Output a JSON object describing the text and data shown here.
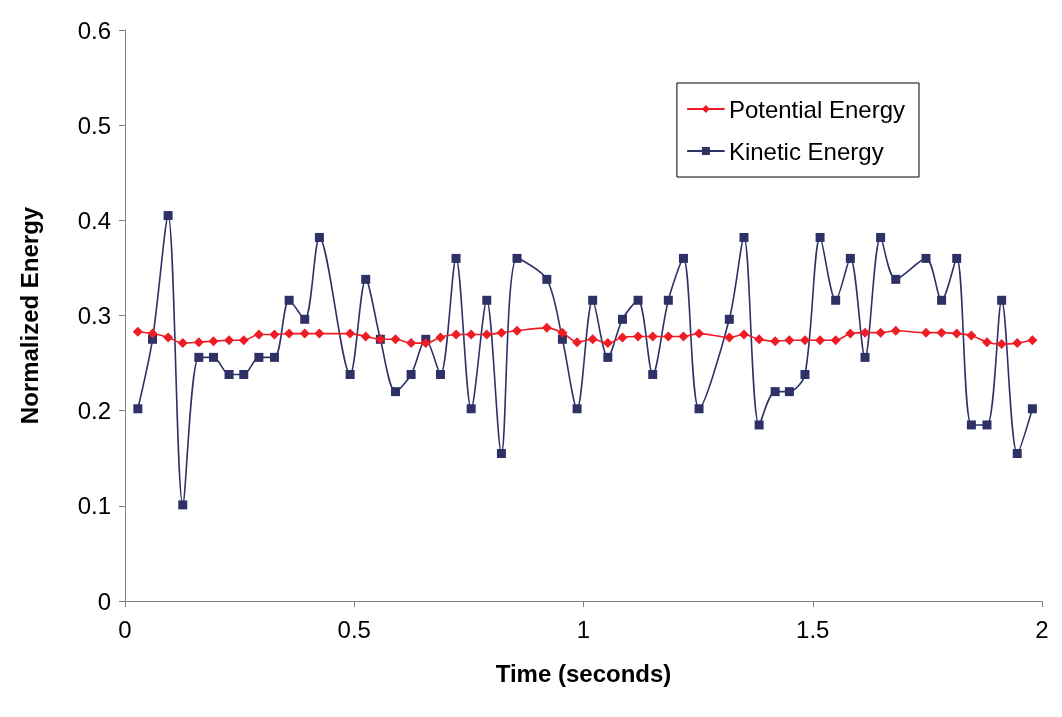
{
  "chart_data": {
    "type": "line",
    "xlabel": "Time (seconds)",
    "ylabel": "Normalized Energy",
    "x": [
      0.028,
      0.06,
      0.094,
      0.126,
      0.161,
      0.193,
      0.227,
      0.259,
      0.292,
      0.326,
      0.358,
      0.392,
      0.424,
      0.491,
      0.525,
      0.557,
      0.59,
      0.624,
      0.656,
      0.688,
      0.722,
      0.755,
      0.789,
      0.821,
      0.855,
      0.92,
      0.954,
      0.986,
      1.02,
      1.053,
      1.085,
      1.119,
      1.151,
      1.185,
      1.218,
      1.252,
      1.318,
      1.35,
      1.383,
      1.418,
      1.449,
      1.483,
      1.516,
      1.55,
      1.582,
      1.614,
      1.648,
      1.681,
      1.747,
      1.781,
      1.814,
      1.846,
      1.88,
      1.912,
      1.946,
      1.979
    ],
    "series": [
      {
        "name": "Potential Energy",
        "color": "#ee1c25",
        "marker": "diamond",
        "values": [
          0.283,
          0.281,
          0.277,
          0.271,
          0.272,
          0.273,
          0.274,
          0.274,
          0.28,
          0.28,
          0.281,
          0.281,
          0.281,
          0.281,
          0.278,
          0.275,
          0.275,
          0.271,
          0.271,
          0.277,
          0.28,
          0.28,
          0.28,
          0.282,
          0.284,
          0.287,
          0.282,
          0.272,
          0.275,
          0.271,
          0.277,
          0.278,
          0.278,
          0.278,
          0.278,
          0.281,
          0.277,
          0.28,
          0.275,
          0.273,
          0.274,
          0.274,
          0.274,
          0.274,
          0.281,
          0.282,
          0.282,
          0.284,
          0.282,
          0.282,
          0.281,
          0.279,
          0.272,
          0.27,
          0.271,
          0.274
        ]
      },
      {
        "name": "Kinetic Energy",
        "color": "#2e3166",
        "marker": "square",
        "values": [
          0.202,
          0.275,
          0.405,
          0.101,
          0.256,
          0.256,
          0.238,
          0.238,
          0.256,
          0.256,
          0.316,
          0.296,
          0.382,
          0.238,
          0.338,
          0.275,
          0.22,
          0.238,
          0.275,
          0.238,
          0.36,
          0.202,
          0.316,
          0.155,
          0.36,
          0.338,
          0.275,
          0.202,
          0.316,
          0.256,
          0.296,
          0.316,
          0.238,
          0.316,
          0.36,
          0.202,
          0.296,
          0.382,
          0.185,
          0.22,
          0.22,
          0.238,
          0.382,
          0.316,
          0.36,
          0.256,
          0.382,
          0.338,
          0.36,
          0.316,
          0.36,
          0.185,
          0.185,
          0.316,
          0.155,
          0.202
        ]
      }
    ],
    "xlim": [
      0,
      2
    ],
    "xticks": [
      0,
      0.5,
      1,
      1.5,
      2
    ],
    "ylim": [
      0,
      0.6
    ],
    "yticks": [
      0,
      0.1,
      0.2,
      0.3,
      0.4,
      0.5,
      0.6
    ],
    "grid": false,
    "legend": "top right"
  }
}
